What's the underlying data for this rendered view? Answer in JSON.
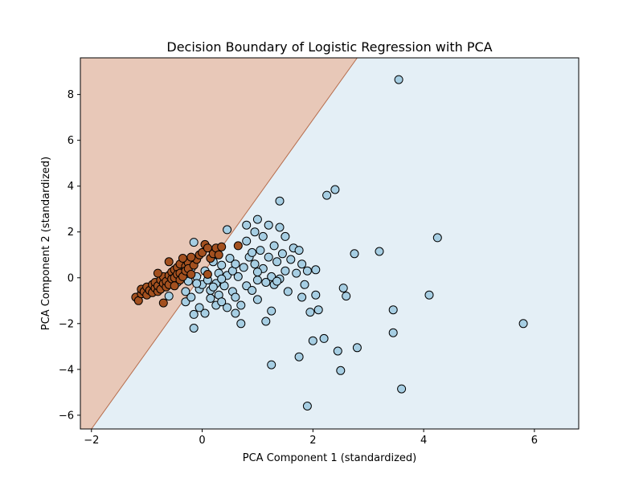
{
  "chart_data": {
    "type": "scatter",
    "title": "Decision Boundary of Logistic Regression with PCA",
    "xlabel": "PCA Component 1 (standardized)",
    "ylabel": "PCA Component 2 (standardized)",
    "xlim": [
      -2.2,
      6.8
    ],
    "ylim": [
      -6.6,
      9.6
    ],
    "xticks": [
      -2,
      0,
      2,
      4,
      6
    ],
    "yticks": [
      -6,
      -4,
      -2,
      0,
      2,
      4,
      6,
      8
    ],
    "grid": false,
    "legend": "none",
    "colors": {
      "class_0_region": "#e8c8b8",
      "class_1_region": "#e4eff6",
      "class_0_point": "#a3501f",
      "class_1_point": "#a6cee3",
      "point_edge": "#000000",
      "boundary": "#b66d4d"
    },
    "decision_boundary": {
      "description_points": [
        [
          -2.0,
          -6.6
        ],
        [
          2.8,
          9.6
        ]
      ]
    },
    "series": [
      {
        "class": 0,
        "points": [
          [
            -1.2,
            -0.85
          ],
          [
            -1.15,
            -1.0
          ],
          [
            -1.1,
            -0.7
          ],
          [
            -1.1,
            -0.5
          ],
          [
            -1.05,
            -0.6
          ],
          [
            -1.0,
            -0.4
          ],
          [
            -1.0,
            -0.75
          ],
          [
            -0.95,
            -0.55
          ],
          [
            -0.9,
            -0.3
          ],
          [
            -0.9,
            -0.65
          ],
          [
            -0.85,
            -0.45
          ],
          [
            -0.85,
            -0.2
          ],
          [
            -0.8,
            -0.6
          ],
          [
            -0.8,
            -0.35
          ],
          [
            -0.75,
            -0.1
          ],
          [
            -0.75,
            -0.5
          ],
          [
            -0.7,
            -0.25
          ],
          [
            -0.7,
            0.05
          ],
          [
            -0.7,
            -1.1
          ],
          [
            -0.65,
            -0.4
          ],
          [
            -0.65,
            -0.15
          ],
          [
            -0.6,
            0.1
          ],
          [
            -0.6,
            -0.3
          ],
          [
            -0.55,
            0.25
          ],
          [
            -0.55,
            -0.05
          ],
          [
            -0.5,
            0.35
          ],
          [
            -0.5,
            0.0
          ],
          [
            -0.5,
            -0.35
          ],
          [
            -0.45,
            0.45
          ],
          [
            -0.45,
            0.15
          ],
          [
            -0.4,
            0.6
          ],
          [
            -0.4,
            0.2
          ],
          [
            -0.4,
            -0.1
          ],
          [
            -0.35,
            0.05
          ],
          [
            -0.3,
            0.5
          ],
          [
            -0.3,
            0.3
          ],
          [
            -0.25,
            0.65
          ],
          [
            -0.25,
            0.4
          ],
          [
            -0.2,
            0.15
          ],
          [
            -0.15,
            0.55
          ],
          [
            -0.1,
            0.8
          ],
          [
            -0.05,
            1.0
          ],
          [
            0.0,
            1.1
          ],
          [
            0.05,
            1.45
          ],
          [
            0.1,
            1.3
          ],
          [
            0.15,
            0.85
          ],
          [
            0.2,
            1.05
          ],
          [
            0.25,
            1.3
          ],
          [
            0.3,
            1.0
          ],
          [
            0.35,
            1.35
          ],
          [
            0.1,
            0.15
          ],
          [
            -0.6,
            0.7
          ],
          [
            -0.2,
            0.9
          ],
          [
            0.65,
            1.4
          ],
          [
            -0.8,
            0.2
          ],
          [
            -0.35,
            0.85
          ]
        ]
      },
      {
        "class": 1,
        "points": [
          [
            -0.9,
            -0.4
          ],
          [
            -0.6,
            -0.8
          ],
          [
            -0.45,
            -0.2
          ],
          [
            -0.3,
            -0.6
          ],
          [
            -0.3,
            -1.05
          ],
          [
            -0.25,
            -0.15
          ],
          [
            -0.2,
            -0.85
          ],
          [
            -0.2,
            0.4
          ],
          [
            -0.15,
            -1.6
          ],
          [
            -0.15,
            -2.2
          ],
          [
            -0.1,
            0.05
          ],
          [
            -0.05,
            -0.5
          ],
          [
            -0.05,
            -1.3
          ],
          [
            0.0,
            -0.3
          ],
          [
            0.05,
            0.3
          ],
          [
            0.05,
            -1.55
          ],
          [
            0.1,
            -0.1
          ],
          [
            0.15,
            -0.55
          ],
          [
            0.15,
            -0.9
          ],
          [
            0.2,
            0.7
          ],
          [
            0.25,
            -0.25
          ],
          [
            0.25,
            -1.2
          ],
          [
            0.3,
            0.2
          ],
          [
            0.3,
            -0.75
          ],
          [
            0.35,
            -1.05
          ],
          [
            0.35,
            0.55
          ],
          [
            0.4,
            -0.35
          ],
          [
            0.45,
            0.1
          ],
          [
            0.45,
            -1.3
          ],
          [
            0.5,
            0.85
          ],
          [
            0.55,
            0.3
          ],
          [
            0.55,
            -0.6
          ],
          [
            0.6,
            -0.85
          ],
          [
            0.6,
            -1.55
          ],
          [
            0.65,
            0.05
          ],
          [
            0.7,
            -1.2
          ],
          [
            0.7,
            -2.0
          ],
          [
            0.75,
            0.45
          ],
          [
            0.8,
            1.6
          ],
          [
            0.8,
            -0.35
          ],
          [
            0.85,
            0.9
          ],
          [
            0.9,
            -0.55
          ],
          [
            0.95,
            2.0
          ],
          [
            0.95,
            0.6
          ],
          [
            1.0,
            -0.1
          ],
          [
            1.0,
            -0.95
          ],
          [
            1.05,
            1.2
          ],
          [
            1.1,
            0.4
          ],
          [
            1.1,
            1.8
          ],
          [
            1.15,
            -0.2
          ],
          [
            1.2,
            2.3
          ],
          [
            1.2,
            0.9
          ],
          [
            1.25,
            0.05
          ],
          [
            1.25,
            -1.45
          ],
          [
            1.3,
            1.4
          ],
          [
            1.3,
            -0.3
          ],
          [
            1.35,
            0.7
          ],
          [
            1.4,
            2.2
          ],
          [
            1.4,
            -0.05
          ],
          [
            1.45,
            1.05
          ],
          [
            1.5,
            1.8
          ],
          [
            1.5,
            0.3
          ],
          [
            1.55,
            -0.6
          ],
          [
            1.6,
            0.8
          ],
          [
            1.65,
            1.3
          ],
          [
            1.7,
            0.2
          ],
          [
            1.75,
            1.2
          ],
          [
            1.8,
            0.6
          ],
          [
            1.8,
            -0.85
          ],
          [
            1.85,
            -0.3
          ],
          [
            1.9,
            0.3
          ],
          [
            1.95,
            -1.5
          ],
          [
            2.05,
            0.35
          ],
          [
            2.05,
            -0.75
          ],
          [
            2.0,
            -2.75
          ],
          [
            2.1,
            -1.4
          ],
          [
            2.2,
            -2.65
          ],
          [
            2.25,
            3.6
          ],
          [
            2.4,
            3.85
          ],
          [
            2.45,
            -3.2
          ],
          [
            2.5,
            -4.05
          ],
          [
            2.55,
            -0.45
          ],
          [
            2.6,
            -0.8
          ],
          [
            2.75,
            1.05
          ],
          [
            2.8,
            -3.05
          ],
          [
            3.2,
            1.15
          ],
          [
            3.45,
            -1.4
          ],
          [
            3.45,
            -2.4
          ],
          [
            3.55,
            8.65
          ],
          [
            3.6,
            -4.85
          ],
          [
            4.1,
            -0.75
          ],
          [
            4.25,
            1.75
          ],
          [
            5.8,
            -2.0
          ],
          [
            1.75,
            -3.45
          ],
          [
            1.25,
            -3.8
          ],
          [
            1.9,
            -5.6
          ],
          [
            1.4,
            3.35
          ],
          [
            0.45,
            2.1
          ],
          [
            1.0,
            2.55
          ],
          [
            0.8,
            2.3
          ],
          [
            1.15,
            -1.9
          ],
          [
            -0.15,
            1.55
          ],
          [
            0.35,
            -0.05
          ],
          [
            0.6,
            0.6
          ],
          [
            0.9,
            1.1
          ],
          [
            1.35,
            -0.15
          ],
          [
            1.0,
            0.25
          ],
          [
            0.2,
            -0.4
          ],
          [
            -0.1,
            -0.25
          ]
        ]
      }
    ]
  }
}
